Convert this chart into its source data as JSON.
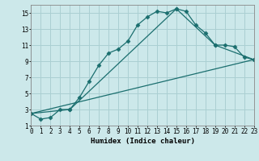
{
  "xlabel": "Humidex (Indice chaleur)",
  "bg_color": "#cce8ea",
  "grid_color": "#aacfd2",
  "line_color": "#1a6e6e",
  "line1_x": [
    0,
    1,
    2,
    3,
    4,
    5,
    6,
    7,
    8,
    9,
    10,
    11,
    12,
    13,
    14,
    15,
    16,
    17,
    18,
    19,
    20,
    21,
    22,
    23
  ],
  "line1_y": [
    2.5,
    1.8,
    2.0,
    3.0,
    3.0,
    4.5,
    6.5,
    8.5,
    10.0,
    10.5,
    11.5,
    13.5,
    14.5,
    15.2,
    15.0,
    15.5,
    15.2,
    13.5,
    12.5,
    11.0,
    11.0,
    10.8,
    9.5,
    9.2
  ],
  "line2_x": [
    0,
    4,
    15,
    19,
    23
  ],
  "line2_y": [
    2.5,
    3.0,
    15.5,
    11.0,
    9.2
  ],
  "line3_x": [
    0,
    23
  ],
  "line3_y": [
    2.5,
    9.2
  ],
  "xlim": [
    0,
    23
  ],
  "ylim": [
    1,
    16
  ],
  "yticks": [
    1,
    3,
    5,
    7,
    9,
    11,
    13,
    15
  ],
  "xticks": [
    0,
    1,
    2,
    3,
    4,
    5,
    6,
    7,
    8,
    9,
    10,
    11,
    12,
    13,
    14,
    15,
    16,
    17,
    18,
    19,
    20,
    21,
    22,
    23
  ],
  "xticklabels": [
    "0",
    "1",
    "2",
    "3",
    "4",
    "5",
    "6",
    "7",
    "8",
    "9",
    "10",
    "11",
    "12",
    "13",
    "14",
    "15",
    "16",
    "17",
    "18",
    "19",
    "20",
    "21",
    "22",
    "23"
  ]
}
